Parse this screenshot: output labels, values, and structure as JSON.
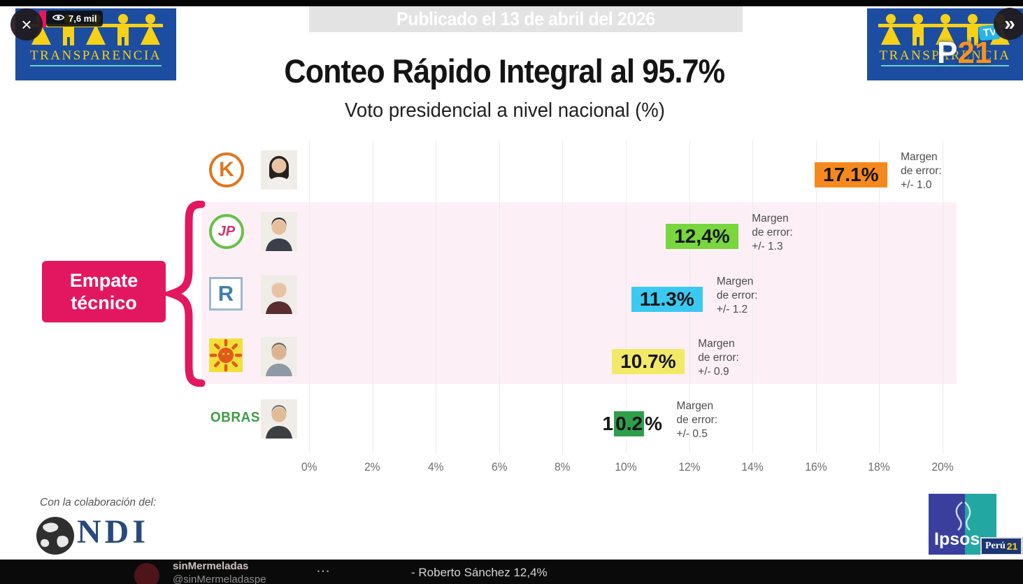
{
  "header": {
    "view_count": "7,6 mil",
    "published_banner": "Publicado el 13 de abril del 2026",
    "close_glyph": "×",
    "next_glyph": "»",
    "transparencia_label": "TRANSPARENCIA",
    "p21_p": "P",
    "p21_num": "21",
    "p21_tv": "TV"
  },
  "titles": {
    "title": "Conteo Rápido Integral al 95.7%",
    "subtitle": "Voto presidencial a nivel nacional (%)"
  },
  "tie": {
    "line1": "Empate",
    "line2": "técnico"
  },
  "footer": {
    "collaboration": "Con la colaboración del:",
    "ndi": "NDI",
    "ipsos": "Ipsos",
    "peru21_peru": "Perú",
    "peru21_21": "21"
  },
  "bottom_bar": {
    "display_name": "sinMermeladas",
    "handle": "@sinMermeladaspe",
    "more_icon": "⋯",
    "visible_text": "- Roberto Sánchez 12,4%"
  },
  "chart_data": {
    "type": "bar",
    "title": "Conteo Rápido Integral al 95.7%",
    "subtitle": "Voto presidencial a nivel nacional (%)",
    "x_ticks": [
      "0%",
      "2%",
      "4%",
      "6%",
      "8%",
      "10%",
      "12%",
      "14%",
      "16%",
      "18%",
      "20%"
    ],
    "xlim": [
      0,
      20
    ],
    "unit": "%",
    "grid": true,
    "tie_group": {
      "label": "Empate técnico",
      "row_indexes": [
        1,
        2,
        3
      ]
    },
    "rows": [
      {
        "party": {
          "style": "k-circle",
          "text": "K"
        },
        "photo": {
          "hair": "#26211f",
          "skin": "#e9c3a3",
          "shirt": "#f2efec",
          "hair_style": "long"
        },
        "value": 17.1,
        "label": "17.1%",
        "label_parts": [
          "",
          "17.1%",
          ""
        ],
        "bar_color": "#f6891e",
        "margin_of_error": 1.0,
        "margin_lines": [
          "Margen",
          "de error:",
          "+/- 1.0"
        ]
      },
      {
        "party": {
          "style": "jp-ring",
          "text": "JP"
        },
        "photo": {
          "hair": "#38302c",
          "skin": "#e6bf9d",
          "shirt": "#3a3f4a",
          "hair_style": "short"
        },
        "value": 12.4,
        "label": "12,4%",
        "label_parts": [
          "",
          "12,4%",
          ""
        ],
        "bar_color": "#79d63e",
        "margin_of_error": 1.3,
        "margin_lines": [
          "Margen",
          "de error:",
          "+/- 1.3"
        ]
      },
      {
        "party": {
          "style": "r-square",
          "text": "R"
        },
        "photo": {
          "hair": "#8d8a85",
          "skin": "#e8c2a2",
          "shirt": "#5a2e2e",
          "hair_style": "bald"
        },
        "value": 11.3,
        "label": "11.3%",
        "label_parts": [
          "",
          "11.3%",
          ""
        ],
        "bar_color": "#3bc9f2",
        "margin_of_error": 1.2,
        "margin_lines": [
          "Margen",
          "de error:",
          "+/- 1.2"
        ]
      },
      {
        "party": {
          "style": "sun-square",
          "bg": "#f3df3a",
          "sun": "#e2581d"
        },
        "photo": {
          "hair": "#6f655c",
          "skin": "#dcb491",
          "shirt": "#8d9aa6",
          "hair_style": "short"
        },
        "value": 10.7,
        "label": "10.7%",
        "label_parts": [
          "",
          "10.7%",
          ""
        ],
        "bar_color": "#f3e968",
        "margin_of_error": 0.9,
        "margin_lines": [
          "Margen",
          "de error:",
          "+/- 0.9"
        ]
      },
      {
        "party": {
          "style": "obras-text",
          "text": "OBRAS"
        },
        "photo": {
          "hair": "#7d7a76",
          "skin": "#e2bb98",
          "shirt": "#3c3f42",
          "hair_style": "short"
        },
        "value": 10.2,
        "label": "10.2%",
        "label_parts": [
          "1",
          "0.2",
          "%"
        ],
        "bar_color": "#2f9e4c",
        "margin_of_error": 0.5,
        "margin_lines": [
          "Margen",
          "de error:",
          "+/- 0.5"
        ]
      }
    ]
  }
}
